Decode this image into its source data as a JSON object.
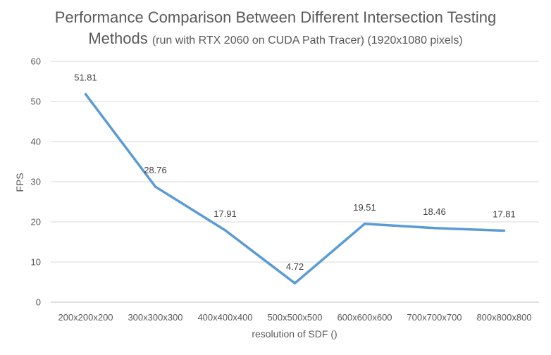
{
  "chart_data": {
    "type": "line",
    "title_main_1": "Performance Comparison Between Different Intersection Testing",
    "title_main_2": "Methods",
    "title_sub": "(run with RTX 2060 on CUDA Path Tracer) (1920x1080 pixels)",
    "xlabel": "resolution of SDF ()",
    "ylabel": "FPS",
    "categories": [
      "200x200x200",
      "300x300x300",
      "400x400x400",
      "500x500x500",
      "600x600x600",
      "700x700x700",
      "800x800x800"
    ],
    "series": [
      {
        "values": [
          51.81,
          28.76,
          17.91,
          4.72,
          19.51,
          18.46,
          17.81
        ],
        "color": "#5B9BD5"
      }
    ],
    "data_labels": [
      "51.81",
      "28.76",
      "17.91",
      "4.72",
      "19.51",
      "18.46",
      "17.81"
    ],
    "ylim": [
      0,
      60
    ],
    "yticks": [
      0,
      10,
      20,
      30,
      40,
      50,
      60
    ],
    "grid": true,
    "legend": "none"
  }
}
